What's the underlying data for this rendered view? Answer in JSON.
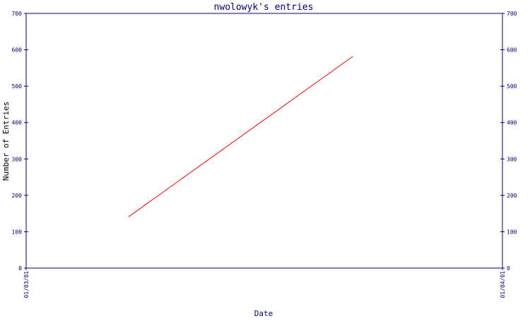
{
  "chart_data": {
    "type": "line",
    "title": "nwolowyk's entries",
    "xlabel": "Date",
    "ylabel": "Number of Entries",
    "ylim": [
      0,
      700
    ],
    "y_ticks": [
      0,
      100,
      200,
      300,
      400,
      500,
      600,
      700
    ],
    "x_ticks": [
      {
        "label": "01/03/01",
        "value": 0
      },
      {
        "label": "01/04/01",
        "value": 1
      }
    ],
    "xlim": [
      0,
      1
    ],
    "grid": false,
    "colors": {
      "axis": "#000080",
      "line": "#ff0000",
      "text": "#000080",
      "ylabel": "#000000"
    },
    "series": [
      {
        "values": [
          {
            "x": 0.215,
            "y": 141
          },
          {
            "x": 0.686,
            "y": 582
          }
        ]
      }
    ]
  }
}
